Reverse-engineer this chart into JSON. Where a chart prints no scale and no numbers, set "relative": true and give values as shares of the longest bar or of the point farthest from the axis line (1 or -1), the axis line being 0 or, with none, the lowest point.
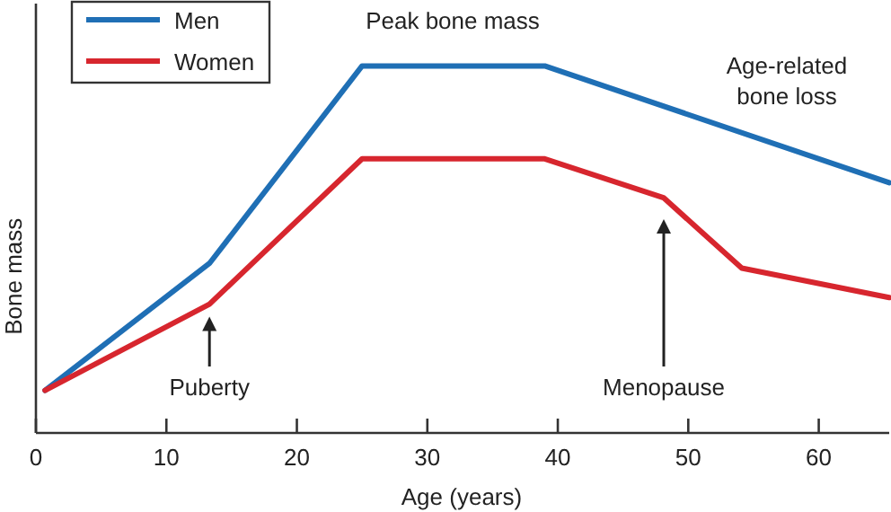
{
  "chart_data": {
    "type": "line",
    "relative": true,
    "xlabel": "Age (years)",
    "ylabel": "Bone mass",
    "xlim": [
      0,
      65.4
    ],
    "xticks": [
      0,
      10,
      20,
      30,
      40,
      50,
      60
    ],
    "series": [
      {
        "name": "Men",
        "color": "#1f6fb5",
        "x": [
          0.7,
          13.3,
          25,
          39,
          65.4
        ],
        "values": [
          0.116,
          0.462,
          1,
          1,
          0.682
        ]
      },
      {
        "name": "Women",
        "color": "#d7262e",
        "x": [
          0.7,
          13.3,
          25,
          39,
          48.1,
          54.1,
          65.4
        ],
        "values": [
          0.116,
          0.351,
          0.747,
          0.747,
          0.641,
          0.449,
          0.369
        ]
      }
    ],
    "annotations": [
      "Peak bone mass",
      "Age-related\nbone loss",
      {
        "text": "Puberty",
        "x": 13.3,
        "y": 0.351
      },
      "Menopause"
    ],
    "legend": "top left",
    "grid": false,
    "marker": "none",
    "line_style": "solid"
  }
}
